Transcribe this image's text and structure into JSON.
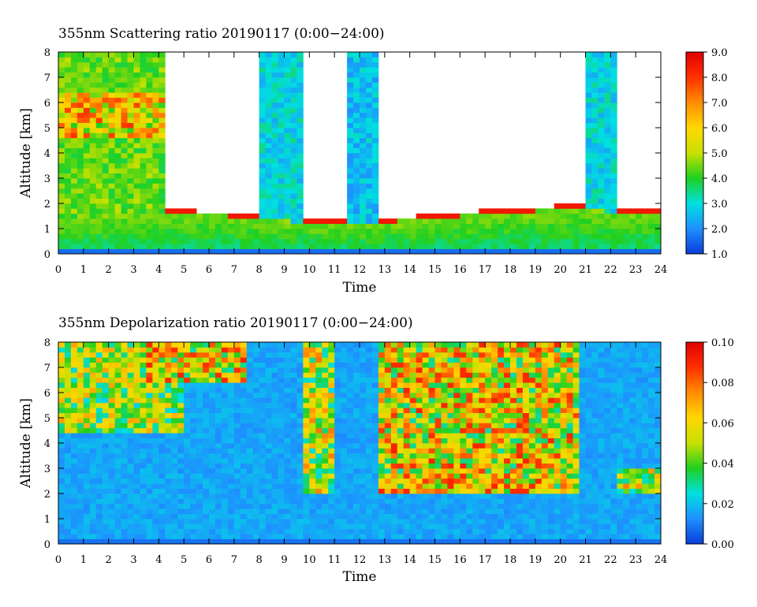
{
  "chart_data": [
    {
      "type": "heatmap",
      "title": "355nm Scattering ratio  20190117 (0:00−24:00)",
      "xlabel": "Time",
      "ylabel": "Altitude [km]",
      "xlim": [
        0,
        24
      ],
      "ylim": [
        0,
        8
      ],
      "x_ticks": [
        "0",
        "1",
        "2",
        "3",
        "4",
        "5",
        "6",
        "7",
        "8",
        "9",
        "10",
        "11",
        "12",
        "13",
        "14",
        "15",
        "16",
        "17",
        "18",
        "19",
        "20",
        "21",
        "22",
        "23",
        "24"
      ],
      "y_ticks": [
        "0",
        "1",
        "2",
        "3",
        "4",
        "5",
        "6",
        "7",
        "8"
      ],
      "colorbar": {
        "range": [
          1.0,
          9.0
        ],
        "ticks": [
          "1.0",
          "2.0",
          "3.0",
          "4.0",
          "5.0",
          "6.0",
          "7.0",
          "8.0",
          "9.0"
        ],
        "colors": [
          "#0a3cd8",
          "#1e90ff",
          "#00e0e0",
          "#20d020",
          "#c8e000",
          "#ffd700",
          "#ff8c00",
          "#ff3000",
          "#e00000"
        ]
      },
      "features": {
        "boundary_layer_top_km": [
          {
            "t": 0,
            "h": 1.45
          },
          {
            "t": 4.3,
            "h": 1.6
          },
          {
            "t": 7.9,
            "h": 1.45
          },
          {
            "t": 9.7,
            "h": 1.25
          },
          {
            "t": 13,
            "h": 1.25
          },
          {
            "t": 16,
            "h": 1.5
          },
          {
            "t": 20.5,
            "h": 1.8
          },
          {
            "t": 22.3,
            "h": 1.65
          },
          {
            "t": 24,
            "h": 1.7
          }
        ],
        "clouds": [
          {
            "t0": 0,
            "t1": 4.3,
            "h0": 1.5,
            "h1": 8,
            "level": 3.8
          },
          {
            "t0": 7.9,
            "t1": 9.7,
            "h0": 1.25,
            "h1": 8,
            "level": 2.3
          },
          {
            "t0": 11.5,
            "t1": 12.8,
            "h0": 1.3,
            "h1": 8,
            "level": 2.0
          },
          {
            "t0": 20.9,
            "t1": 22.2,
            "h0": 1.7,
            "h1": 8,
            "level": 2.3
          }
        ]
      }
    },
    {
      "type": "heatmap",
      "title": "355nm Depolarization ratio  20190117 (0:00−24:00)",
      "xlabel": "Time",
      "ylabel": "Altitude [km]",
      "xlim": [
        0,
        24
      ],
      "ylim": [
        0,
        8
      ],
      "x_ticks": [
        "0",
        "1",
        "2",
        "3",
        "4",
        "5",
        "6",
        "7",
        "8",
        "9",
        "10",
        "11",
        "12",
        "13",
        "14",
        "15",
        "16",
        "17",
        "18",
        "19",
        "20",
        "21",
        "22",
        "23",
        "24"
      ],
      "y_ticks": [
        "0",
        "1",
        "2",
        "3",
        "4",
        "5",
        "6",
        "7",
        "8"
      ],
      "colorbar": {
        "range": [
          0.0,
          0.1
        ],
        "ticks": [
          "0.00",
          "0.02",
          "0.04",
          "0.06",
          "0.08",
          "0.10"
        ],
        "colors": [
          "#0a3cd8",
          "#1e90ff",
          "#00e0e0",
          "#20d020",
          "#c8e000",
          "#ffd700",
          "#ff8c00",
          "#ff3000",
          "#e00000"
        ]
      },
      "features": {
        "background_level": 0.015,
        "ice_cloud_regions": [
          {
            "t0": 0,
            "t1": 5,
            "h0": 4.5,
            "h1": 8,
            "level": 0.055
          },
          {
            "t0": 3.5,
            "t1": 7.5,
            "h0": 6.5,
            "h1": 8,
            "level": 0.07
          },
          {
            "t0": 9.7,
            "t1": 11,
            "h0": 2,
            "h1": 8,
            "level": 0.06
          },
          {
            "t0": 12.8,
            "t1": 20.7,
            "h0": 2,
            "h1": 8,
            "level": 0.07
          },
          {
            "t0": 22.3,
            "t1": 24,
            "h0": 2,
            "h1": 3,
            "level": 0.06
          }
        ]
      }
    }
  ]
}
